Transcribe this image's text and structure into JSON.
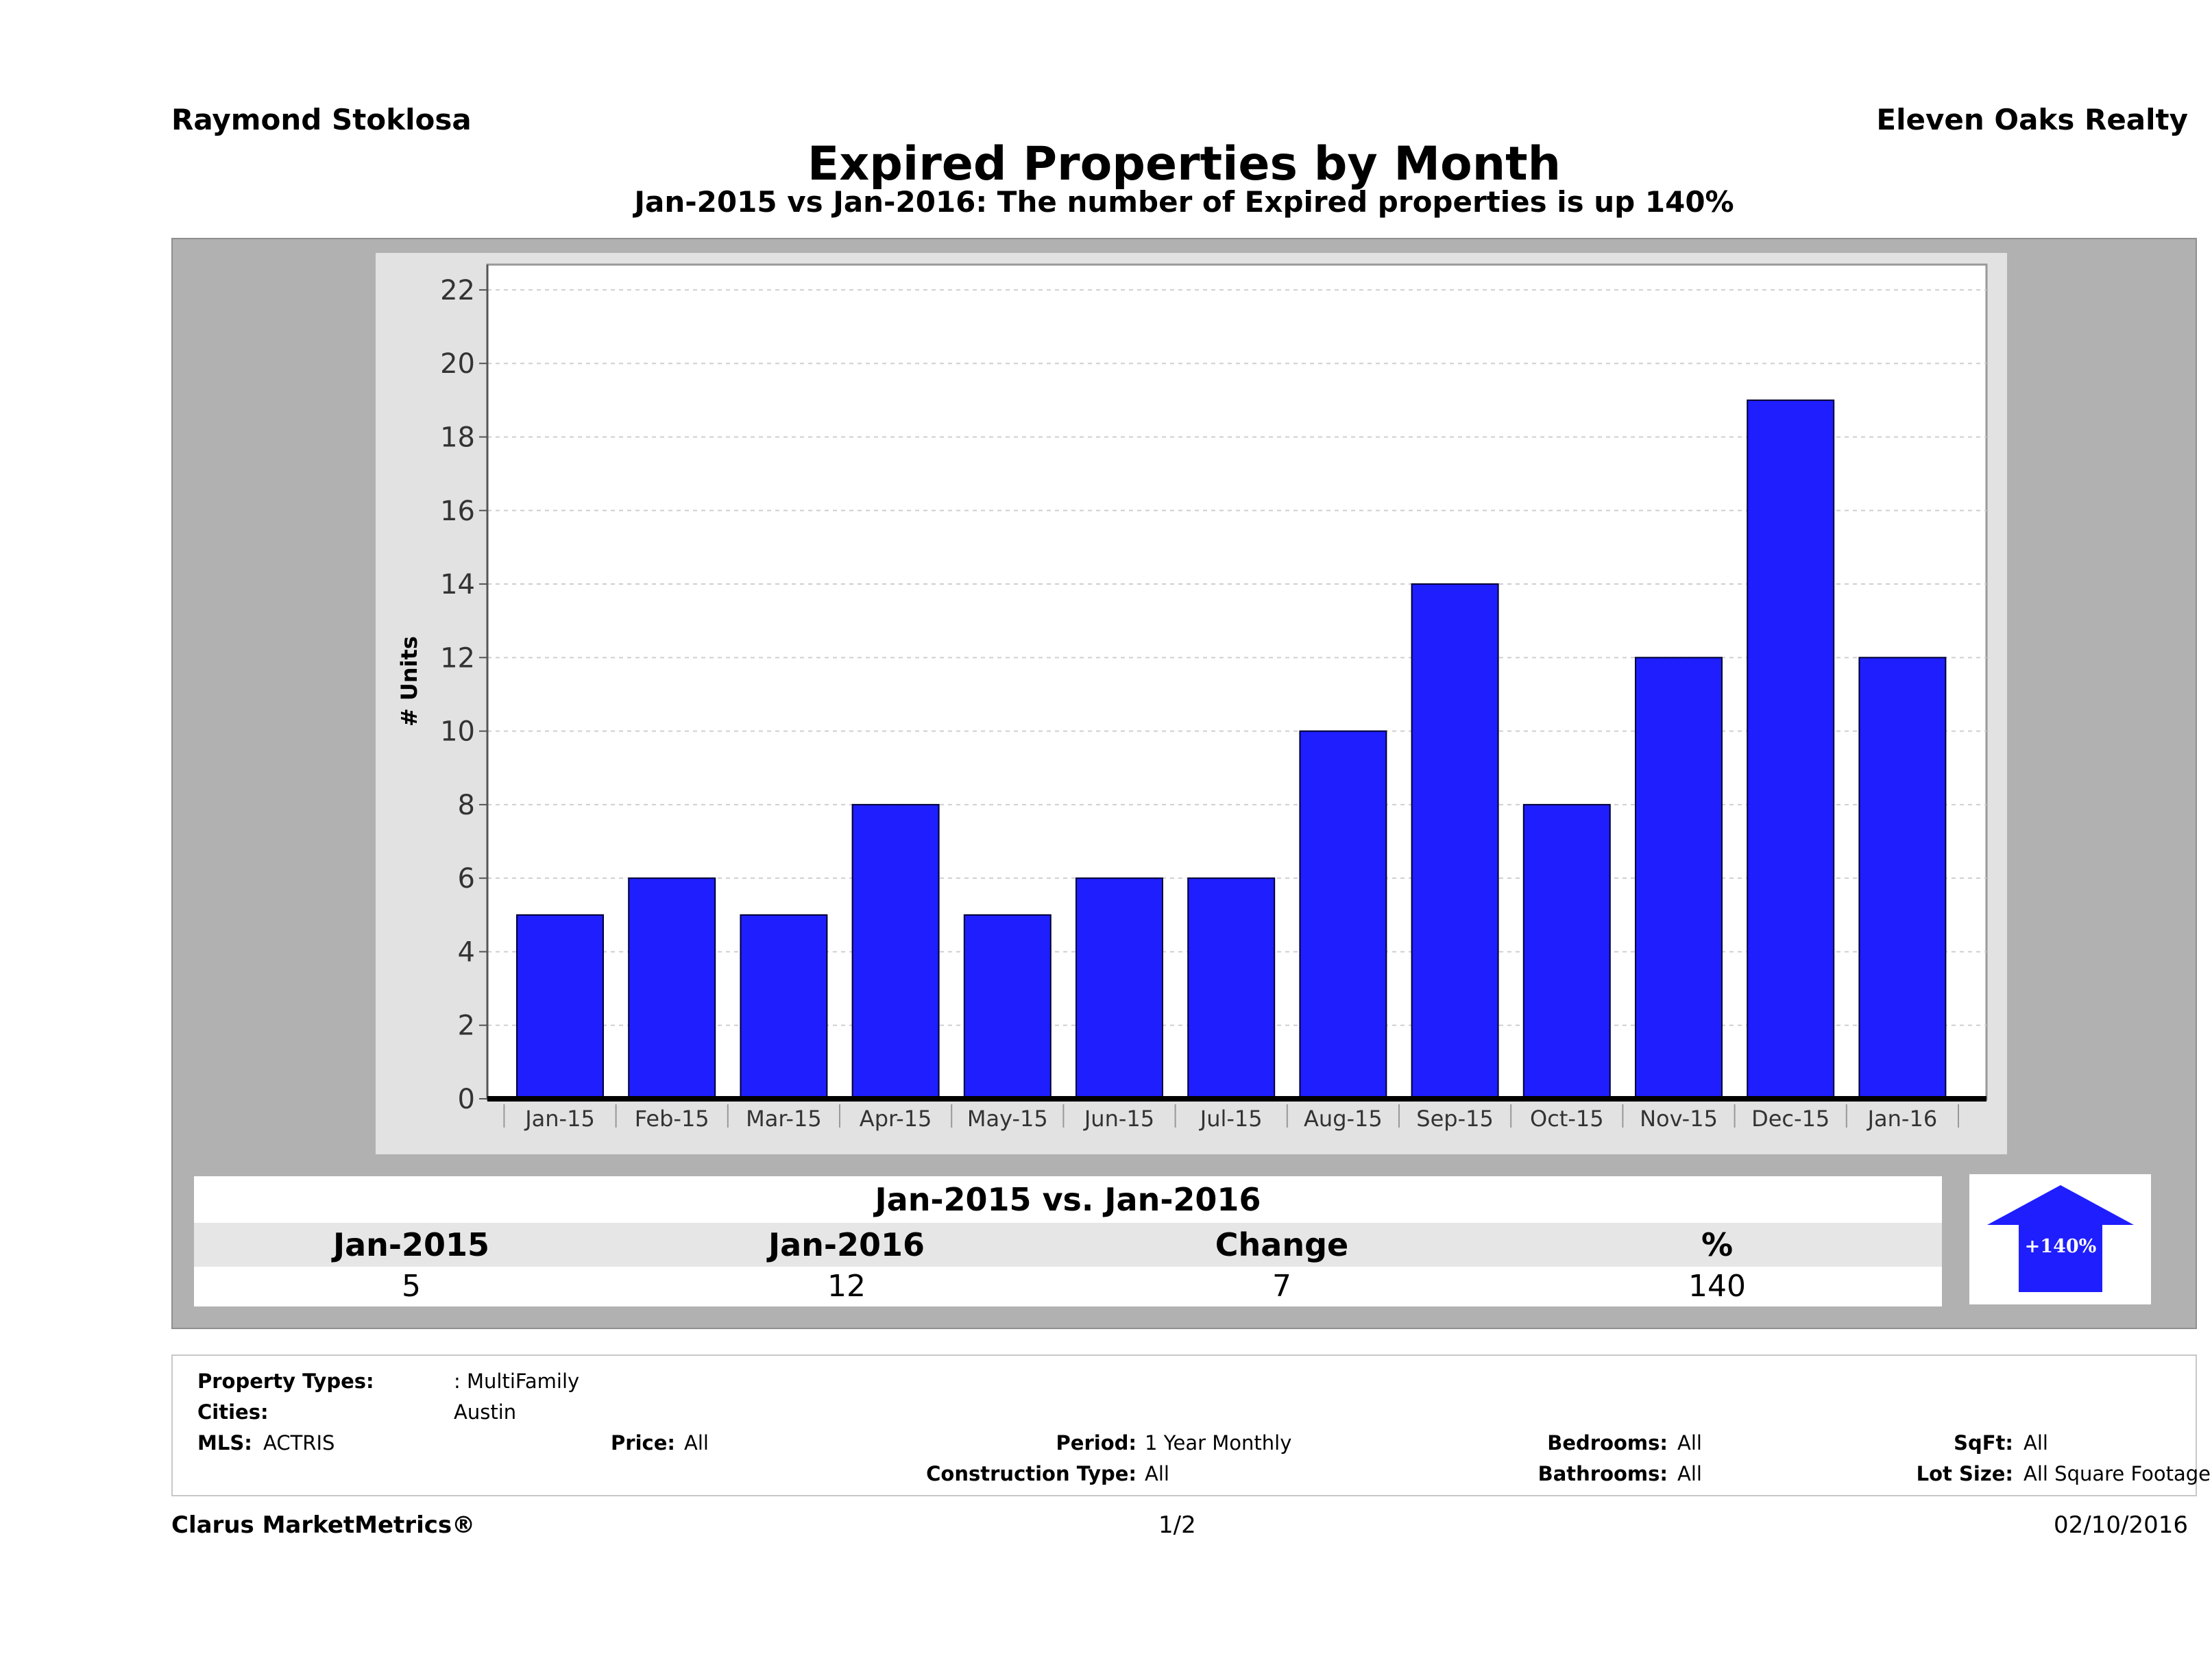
{
  "header": {
    "agent": "Raymond Stoklosa",
    "company": "Eleven Oaks Realty",
    "title": "Expired Properties by Month",
    "subtitle": "Jan-2015 vs Jan-2016: The number of Expired  properties is up 140%"
  },
  "chart_data": {
    "type": "bar",
    "categories": [
      "Jan-15",
      "Feb-15",
      "Mar-15",
      "Apr-15",
      "May-15",
      "Jun-15",
      "Jul-15",
      "Aug-15",
      "Sep-15",
      "Oct-15",
      "Nov-15",
      "Dec-15",
      "Jan-16"
    ],
    "values": [
      5,
      6,
      5,
      8,
      5,
      6,
      6,
      10,
      14,
      8,
      12,
      19,
      12
    ],
    "ylabel": "# Units",
    "xlabel": "",
    "ylim": [
      0,
      22
    ],
    "yticks": [
      0,
      2,
      4,
      6,
      8,
      10,
      12,
      14,
      16,
      18,
      20,
      22
    ],
    "grid": true,
    "bar_color": "#1e1eff"
  },
  "comparison": {
    "title": "Jan-2015 vs. Jan-2016",
    "headers": [
      "Jan-2015",
      "Jan-2016",
      "Change",
      "%"
    ],
    "values": [
      "5",
      "12",
      "7",
      "140"
    ],
    "badge": "+140%",
    "badge_color": "#1e1eff"
  },
  "criteria": {
    "property_types_label": "Property Types:",
    "property_types_value": ": MultiFamily",
    "cities_label": "Cities:",
    "cities_value": "Austin",
    "mls_label": "MLS:",
    "mls_value": "ACTRIS",
    "price_label": "Price:",
    "price_value": "All",
    "period_label": "Period:",
    "period_value": "1 Year Monthly",
    "construction_label": "Construction Type:",
    "construction_value": "All",
    "bedrooms_label": "Bedrooms:",
    "bedrooms_value": "All",
    "bathrooms_label": "Bathrooms:",
    "bathrooms_value": "All",
    "sqft_label": "SqFt:",
    "sqft_value": "All",
    "lotsize_label": "Lot Size:",
    "lotsize_value": "All Square Footage"
  },
  "footer": {
    "brand": "Clarus MarketMetrics®",
    "page": "1/2",
    "date": "02/10/2016"
  }
}
